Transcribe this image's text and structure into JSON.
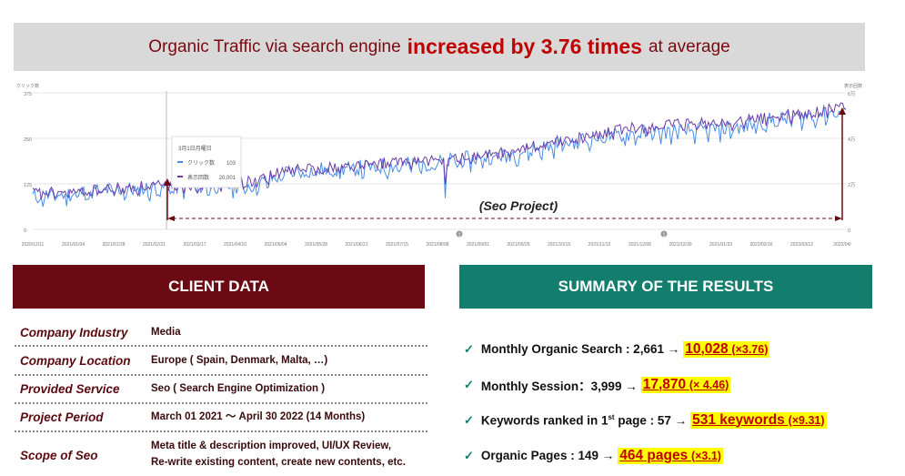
{
  "banner": {
    "text_before": "Organic Traffic via search engine",
    "emphasis": "increased by 3.76 times",
    "text_after": "at average"
  },
  "chart_data": {
    "type": "line",
    "left_axis_label": "クリック数",
    "right_axis_label": "表示回数",
    "left_ticks": [
      "375",
      "250",
      "125",
      "0"
    ],
    "right_ticks": [
      "6万",
      "4万",
      "2万",
      "0"
    ],
    "ylim": [
      0,
      375
    ],
    "x_ticks": [
      "2020/12/11",
      "2021/01/04",
      "2021/01/28",
      "2021/02/21",
      "2021/03/17",
      "2021/04/10",
      "2021/05/04",
      "2021/05/28",
      "2021/06/21",
      "2021/07/15",
      "2021/08/08",
      "2021/09/01",
      "2021/09/25",
      "2021/10/19",
      "2021/11/12",
      "2021/12/06",
      "2021/12/30",
      "2021/01/23",
      "2022/02/16",
      "2022/03/12",
      "2022/04/"
    ],
    "series": [
      {
        "name": "クリック数",
        "color": "#4a8be8",
        "values": [
          90,
          98,
          108,
          112,
          118,
          120,
          122,
          160,
          165,
          170,
          178,
          185,
          195,
          210,
          230,
          250,
          262,
          268,
          272,
          280,
          300,
          312,
          330
        ]
      },
      {
        "name": "表示回数",
        "color": "#6a3ea6",
        "values": [
          100,
          102,
          110,
          118,
          122,
          126,
          135,
          165,
          170,
          178,
          188,
          190,
          200,
          215,
          240,
          255,
          275,
          285,
          290,
          295,
          310,
          318,
          340
        ]
      }
    ],
    "tooltip": {
      "date": "3月1日月曜日",
      "rows": [
        {
          "label": "クリック数",
          "value": "103"
        },
        {
          "label": "表示回数",
          "value": "20,001"
        }
      ]
    },
    "annotation": "(Seo Project)",
    "markers": [
      "1",
      "1"
    ],
    "colors": {
      "clicks": "#4a8be8",
      "impressions": "#6a3ea6",
      "arrow": "#6b0a12"
    }
  },
  "client": {
    "title": "CLIENT DATA",
    "rows": [
      {
        "label": "Company Industry",
        "value": "Media"
      },
      {
        "label": "Company Location",
        "value": "Europe ( Spain, Denmark, Malta, …)"
      },
      {
        "label": "Provided Service",
        "value": "Seo ( Search Engine Optimization )"
      },
      {
        "label": "Project Period",
        "value": "March 01 2021 〜 April 30 2022 (14 Months)"
      },
      {
        "label": "Scope of Seo",
        "value": "Meta title & description improved, UI/UX Review,",
        "value2": "Re-write existing content, create new contents, etc."
      }
    ]
  },
  "summary": {
    "title": "SUMMARY OF THE RESULTS",
    "check": "✓",
    "items": [
      {
        "prefix": "Monthly Organic Search : 2,661 →",
        "value": "10,028",
        "mult": "(×3.76)"
      },
      {
        "prefix": "Monthly Session：3,999 →",
        "value": "17,870",
        "mult": "(× 4.46)"
      },
      {
        "prefix_a": "Keywords ranked in 1",
        "sup": "st",
        "prefix_b": " page : 57 →",
        "value": "531 keywords",
        "mult": "(×9.31)"
      },
      {
        "prefix": "Organic Pages : 149 →",
        "value": "464 pages",
        "mult": "(×3.1)"
      }
    ]
  }
}
